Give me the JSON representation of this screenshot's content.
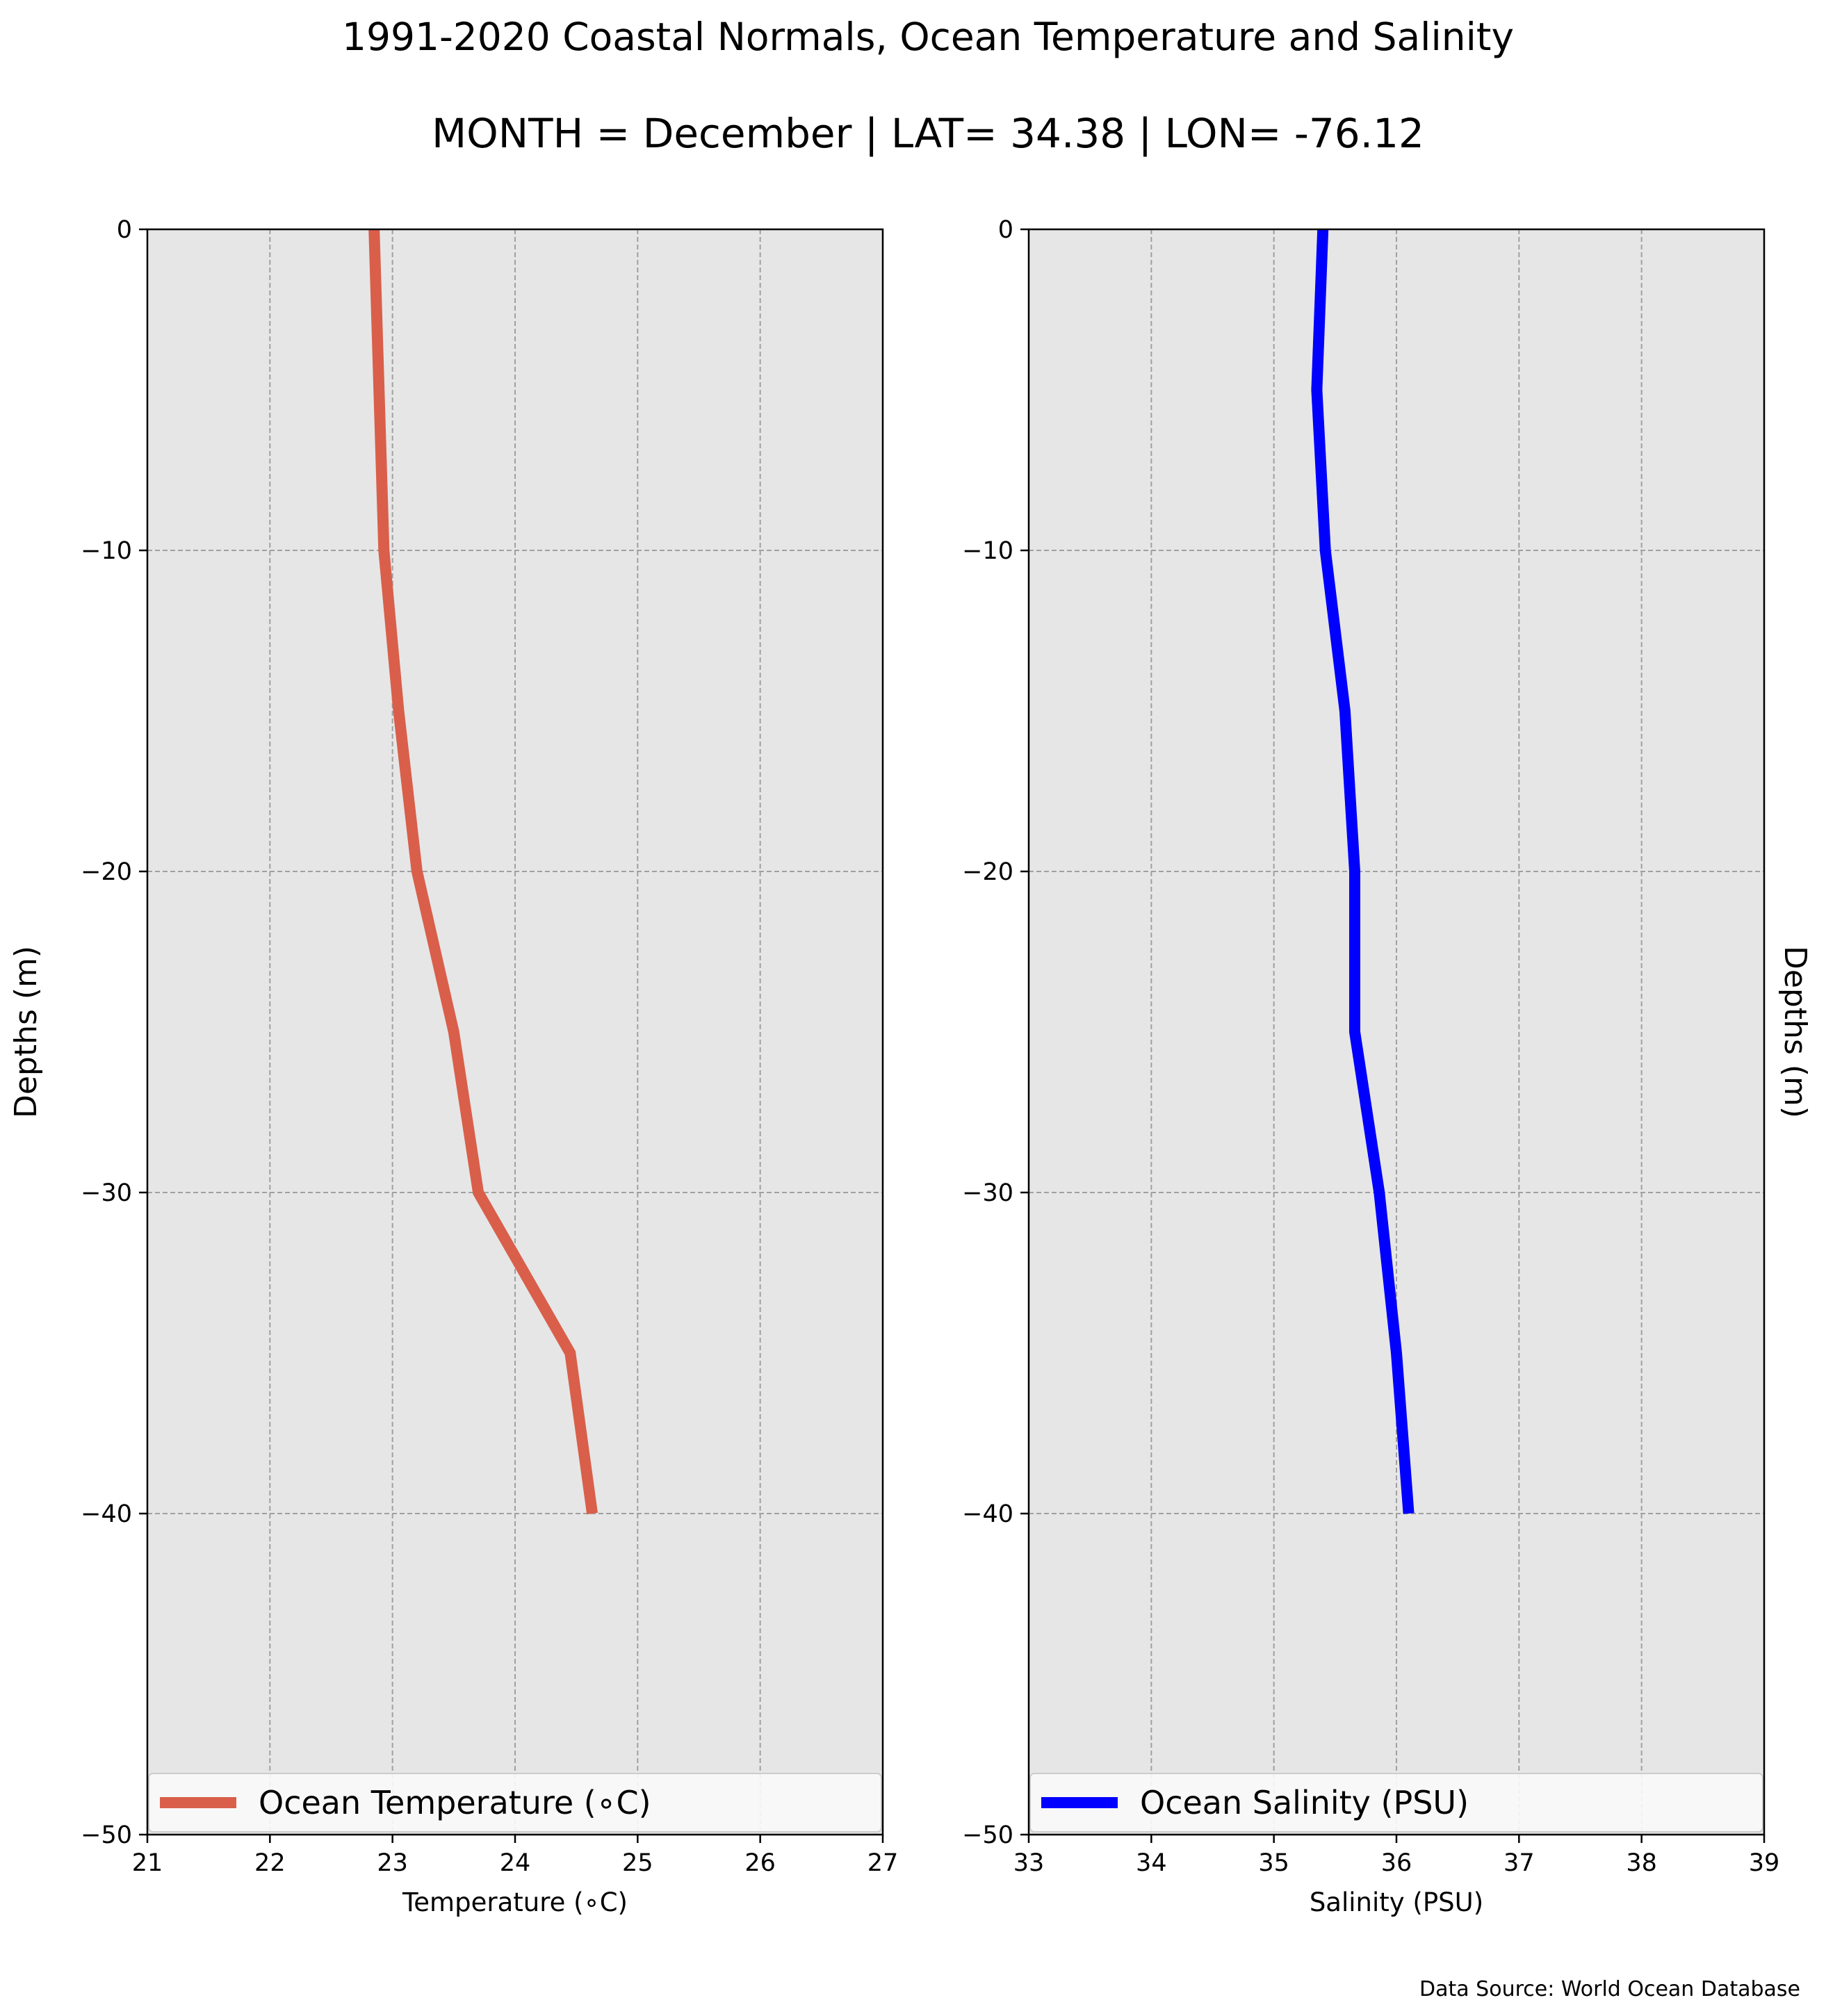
{
  "figure": {
    "title": "1991-2020 Coastal Normals, Ocean Temperature and Salinity",
    "subtitle": "MONTH = December | LAT= 34.38 | LON= -76.12",
    "source": "Data Source: World Ocean Database",
    "background": "#ffffff",
    "plot_background": "#e6e6e6",
    "grid_color": "#a0a0a0"
  },
  "chart_data": [
    {
      "type": "line",
      "xlabel": "Temperature (∘C)",
      "ylabel": "Depths (m)",
      "ylabel_side": "left",
      "xlim": [
        21,
        27
      ],
      "ylim": [
        -50,
        0
      ],
      "xticks": [
        21,
        22,
        23,
        24,
        25,
        26,
        27
      ],
      "yticks": [
        0,
        -10,
        -20,
        -30,
        -40,
        -50
      ],
      "ytick_labels": [
        "0",
        "−10",
        "−20",
        "−30",
        "−40",
        "−50"
      ],
      "grid": true,
      "legend_position": "bottom",
      "series": [
        {
          "name": "Ocean Temperature (∘C)",
          "color": "#d95f4b",
          "x": [
            22.85,
            22.93,
            23.05,
            23.2,
            23.5,
            23.7,
            24.0,
            24.45,
            24.63
          ],
          "y": [
            0,
            -10,
            -15,
            -20,
            -25,
            -30,
            -32,
            -35,
            -40
          ]
        }
      ]
    },
    {
      "type": "line",
      "xlabel": "Salinity (PSU)",
      "ylabel": "Depths (m)",
      "ylabel_side": "right",
      "xlim": [
        33,
        39
      ],
      "ylim": [
        -50,
        0
      ],
      "xticks": [
        33,
        34,
        35,
        36,
        37,
        38,
        39
      ],
      "yticks": [
        0,
        -10,
        -20,
        -30,
        -40,
        -50
      ],
      "ytick_labels": [
        "0",
        "−10",
        "−20",
        "−30",
        "−40",
        "−50"
      ],
      "grid": true,
      "legend_position": "bottom",
      "series": [
        {
          "name": "Ocean Salinity (PSU)",
          "color": "#0000ff",
          "x": [
            35.4,
            35.35,
            35.42,
            35.58,
            35.66,
            35.66,
            35.86,
            36.0,
            36.1
          ],
          "y": [
            0,
            -5,
            -10,
            -15,
            -20,
            -25,
            -30,
            -35,
            -40
          ]
        }
      ]
    }
  ]
}
